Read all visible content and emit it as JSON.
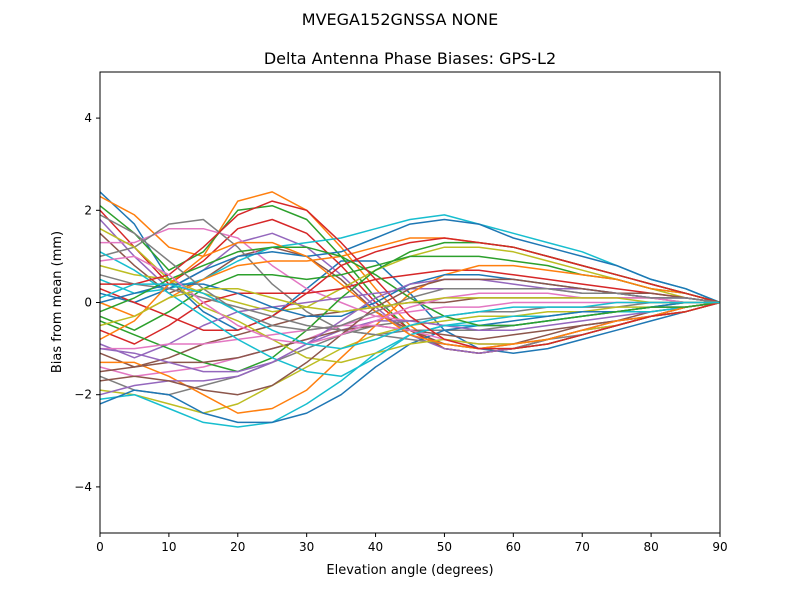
{
  "suptitle": "MVEGA152GNSSA   NONE",
  "chart_data": {
    "type": "line",
    "title": "Delta Antenna Phase Biases: GPS-L2",
    "xlabel": "Elevation angle (degrees)",
    "ylabel": "Bias from mean (mm)",
    "xlim": [
      0,
      90
    ],
    "ylim": [
      -5,
      5
    ],
    "xticks": [
      "0",
      "10",
      "20",
      "30",
      "40",
      "50",
      "60",
      "70",
      "80",
      "90"
    ],
    "yticks": [
      "−4",
      "−2",
      "0",
      "2",
      "4"
    ],
    "grid": false,
    "legend": "none",
    "x": [
      0,
      5,
      10,
      15,
      20,
      25,
      30,
      35,
      40,
      45,
      50,
      55,
      60,
      65,
      70,
      75,
      80,
      85,
      90
    ],
    "series": [
      {
        "values": [
          2.4,
          1.7,
          0.5,
          -0.2,
          -0.6,
          -0.3,
          0.3,
          0.9,
          0.9,
          0.2,
          -0.6,
          -1.0,
          -1.1,
          -1.0,
          -0.8,
          -0.6,
          -0.4,
          -0.2,
          0.0
        ]
      },
      {
        "values": [
          2.3,
          1.9,
          1.2,
          1.0,
          2.2,
          2.4,
          2.0,
          1.2,
          0.3,
          -0.5,
          -1.0,
          -1.1,
          -1.0,
          -0.9,
          -0.7,
          -0.5,
          -0.3,
          -0.2,
          0.0
        ]
      },
      {
        "values": [
          2.1,
          1.5,
          0.7,
          1.1,
          2.0,
          2.1,
          1.8,
          1.0,
          0.1,
          -0.6,
          -1.0,
          -1.1,
          -1.0,
          -0.9,
          -0.7,
          -0.5,
          -0.3,
          -0.2,
          0.0
        ]
      },
      {
        "values": [
          2.0,
          1.2,
          0.4,
          0.9,
          1.6,
          1.8,
          1.5,
          0.8,
          0.0,
          -0.6,
          -1.0,
          -1.1,
          -1.0,
          -0.8,
          -0.6,
          -0.5,
          -0.3,
          -0.1,
          0.0
        ]
      },
      {
        "values": [
          1.8,
          1.0,
          0.3,
          0.7,
          1.3,
          1.5,
          1.2,
          0.6,
          -0.1,
          -0.7,
          -1.0,
          -1.1,
          -1.0,
          -0.8,
          -0.6,
          -0.4,
          -0.3,
          -0.1,
          0.0
        ]
      },
      {
        "values": [
          1.5,
          0.8,
          0.2,
          0.5,
          1.0,
          1.2,
          1.0,
          0.5,
          -0.2,
          -0.6,
          -0.9,
          -1.0,
          -0.9,
          -0.7,
          -0.5,
          -0.4,
          -0.2,
          -0.1,
          0.0
        ]
      },
      {
        "values": [
          1.3,
          1.3,
          1.6,
          1.6,
          1.4,
          0.8,
          0.3,
          0.0,
          -0.3,
          -0.4,
          -0.5,
          -0.5,
          -0.5,
          -0.4,
          -0.3,
          -0.2,
          -0.1,
          -0.1,
          0.0
        ]
      },
      {
        "values": [
          1.0,
          1.2,
          1.7,
          1.8,
          1.2,
          0.4,
          -0.2,
          -0.6,
          -0.7,
          -0.6,
          -0.6,
          -0.6,
          -0.5,
          -0.4,
          -0.3,
          -0.2,
          -0.1,
          -0.1,
          0.0
        ]
      },
      {
        "values": [
          0.8,
          0.6,
          0.5,
          0.2,
          0.0,
          -0.2,
          -0.1,
          0.3,
          0.7,
          1.0,
          1.2,
          1.2,
          1.1,
          0.9,
          0.7,
          0.5,
          0.3,
          0.1,
          0.0
        ]
      },
      {
        "values": [
          0.5,
          0.2,
          0.3,
          0.5,
          0.9,
          1.2,
          1.3,
          1.4,
          1.6,
          1.8,
          1.9,
          1.7,
          1.5,
          1.3,
          1.1,
          0.8,
          0.5,
          0.3,
          0.0
        ]
      },
      {
        "values": [
          0.2,
          0.0,
          0.3,
          0.7,
          1.0,
          1.1,
          1.0,
          1.1,
          1.4,
          1.7,
          1.8,
          1.7,
          1.4,
          1.2,
          1.0,
          0.8,
          0.5,
          0.3,
          0.0
        ]
      },
      {
        "values": [
          0.0,
          -0.3,
          0.1,
          0.5,
          0.8,
          0.9,
          0.9,
          1.0,
          1.2,
          1.4,
          1.4,
          1.3,
          1.2,
          1.0,
          0.8,
          0.6,
          0.4,
          0.2,
          0.0
        ]
      },
      {
        "values": [
          -0.3,
          -0.6,
          -0.2,
          0.3,
          0.6,
          0.6,
          0.5,
          0.6,
          0.8,
          1.0,
          1.0,
          1.0,
          0.9,
          0.8,
          0.6,
          0.5,
          0.3,
          0.2,
          0.0
        ]
      },
      {
        "values": [
          -0.6,
          -0.9,
          -0.5,
          0.0,
          0.2,
          0.2,
          0.2,
          0.3,
          0.5,
          0.6,
          0.7,
          0.7,
          0.6,
          0.5,
          0.4,
          0.3,
          0.2,
          0.1,
          0.0
        ]
      },
      {
        "values": [
          -0.9,
          -1.2,
          -0.9,
          -0.5,
          -0.2,
          -0.1,
          0.0,
          0.1,
          0.2,
          0.3,
          0.3,
          0.3,
          0.3,
          0.3,
          0.2,
          0.2,
          0.1,
          0.1,
          0.0
        ]
      },
      {
        "values": [
          -1.1,
          -1.4,
          -1.2,
          -0.9,
          -0.7,
          -0.5,
          -0.3,
          -0.2,
          -0.1,
          0.0,
          0.0,
          0.1,
          0.1,
          0.1,
          0.1,
          0.1,
          0.1,
          0.0,
          0.0
        ]
      },
      {
        "values": [
          -1.4,
          -1.6,
          -1.5,
          -1.4,
          -1.2,
          -1.0,
          -0.8,
          -0.5,
          -0.3,
          -0.2,
          -0.1,
          -0.1,
          0.0,
          0.0,
          0.0,
          0.0,
          0.0,
          0.0,
          0.0
        ]
      },
      {
        "values": [
          -1.6,
          -1.9,
          -2.0,
          -1.8,
          -1.6,
          -1.3,
          -1.0,
          -0.7,
          -0.5,
          -0.4,
          -0.3,
          -0.2,
          -0.2,
          -0.1,
          -0.1,
          -0.1,
          0.0,
          0.0,
          0.0
        ]
      },
      {
        "values": [
          -1.9,
          -2.0,
          -2.2,
          -2.4,
          -2.2,
          -1.8,
          -1.4,
          -1.0,
          -0.7,
          -0.5,
          -0.4,
          -0.3,
          -0.3,
          -0.2,
          -0.2,
          -0.1,
          -0.1,
          0.0,
          0.0
        ]
      },
      {
        "values": [
          -2.1,
          -2.0,
          -2.3,
          -2.6,
          -2.7,
          -2.6,
          -2.2,
          -1.7,
          -1.1,
          -0.7,
          -0.5,
          -0.4,
          -0.3,
          -0.3,
          -0.2,
          -0.2,
          -0.1,
          0.0,
          0.0
        ]
      },
      {
        "values": [
          -2.2,
          -1.9,
          -2.0,
          -2.4,
          -2.6,
          -2.6,
          -2.4,
          -2.0,
          -1.4,
          -0.9,
          -0.6,
          -0.5,
          -0.4,
          -0.3,
          -0.2,
          -0.2,
          -0.1,
          0.0,
          0.0
        ]
      },
      {
        "values": [
          -1.3,
          -1.3,
          -1.6,
          -2.0,
          -2.4,
          -2.3,
          -1.9,
          -1.2,
          -0.5,
          0.2,
          0.6,
          0.8,
          0.8,
          0.7,
          0.6,
          0.5,
          0.3,
          0.2,
          0.0
        ]
      },
      {
        "values": [
          -0.4,
          -0.7,
          -1.0,
          -1.3,
          -1.5,
          -1.2,
          -0.6,
          0.1,
          0.7,
          1.1,
          1.3,
          1.3,
          1.2,
          1.0,
          0.8,
          0.6,
          0.4,
          0.2,
          0.0
        ]
      },
      {
        "values": [
          0.3,
          0.0,
          -0.3,
          -0.6,
          -0.6,
          -0.3,
          0.2,
          0.8,
          1.1,
          1.3,
          1.4,
          1.3,
          1.2,
          1.0,
          0.8,
          0.6,
          0.4,
          0.2,
          0.0
        ]
      },
      {
        "values": [
          -2.0,
          -1.8,
          -1.7,
          -1.7,
          -1.6,
          -1.3,
          -0.9,
          -0.6,
          -0.4,
          -0.4,
          -0.5,
          -0.6,
          -0.6,
          -0.5,
          -0.4,
          -0.3,
          -0.2,
          -0.1,
          0.0
        ]
      },
      {
        "values": [
          -1.5,
          -1.4,
          -1.3,
          -1.3,
          -1.2,
          -1.0,
          -0.8,
          -0.6,
          -0.5,
          -0.6,
          -0.7,
          -0.8,
          -0.7,
          -0.6,
          -0.5,
          -0.4,
          -0.3,
          -0.1,
          0.0
        ]
      },
      {
        "values": [
          -1.0,
          -1.0,
          -0.9,
          -0.9,
          -0.8,
          -0.7,
          -0.6,
          -0.5,
          -0.5,
          -0.6,
          -0.8,
          -0.9,
          -0.9,
          -0.8,
          -0.6,
          -0.5,
          -0.3,
          -0.2,
          0.0
        ]
      },
      {
        "values": [
          0.6,
          0.4,
          0.3,
          0.1,
          -0.1,
          -0.3,
          -0.5,
          -0.6,
          -0.7,
          -0.8,
          -0.9,
          -1.0,
          -1.0,
          -0.8,
          -0.7,
          -0.5,
          -0.3,
          -0.2,
          0.0
        ]
      },
      {
        "values": [
          1.6,
          1.2,
          0.5,
          -0.1,
          -0.4,
          -0.8,
          -1.2,
          -1.3,
          -1.1,
          -0.9,
          -0.8,
          -0.9,
          -0.9,
          -0.8,
          -0.6,
          -0.5,
          -0.3,
          -0.2,
          0.0
        ]
      },
      {
        "values": [
          1.1,
          0.7,
          0.2,
          -0.3,
          -0.8,
          -1.2,
          -1.5,
          -1.6,
          -1.2,
          -0.7,
          -0.5,
          -0.5,
          -0.5,
          -0.4,
          -0.3,
          -0.2,
          -0.2,
          -0.1,
          0.0
        ]
      },
      {
        "values": [
          0.0,
          0.2,
          0.4,
          0.4,
          0.2,
          -0.1,
          -0.3,
          -0.3,
          0.0,
          0.4,
          0.6,
          0.6,
          0.5,
          0.4,
          0.3,
          0.2,
          0.1,
          0.1,
          0.0
        ]
      },
      {
        "values": [
          -0.8,
          -0.4,
          0.4,
          1.0,
          1.3,
          1.3,
          1.0,
          0.4,
          -0.2,
          -0.7,
          -0.9,
          -1.0,
          -0.9,
          -0.8,
          -0.6,
          -0.4,
          -0.3,
          -0.1,
          0.0
        ]
      },
      {
        "values": [
          -0.2,
          0.1,
          0.5,
          0.8,
          1.1,
          1.2,
          1.2,
          1.0,
          0.6,
          0.1,
          -0.3,
          -0.5,
          -0.5,
          -0.4,
          -0.3,
          -0.2,
          -0.1,
          -0.1,
          0.0
        ]
      },
      {
        "values": [
          0.4,
          0.4,
          0.6,
          1.2,
          1.9,
          2.2,
          2.0,
          1.3,
          0.5,
          -0.3,
          -0.8,
          -1.0,
          -1.0,
          -0.9,
          -0.7,
          -0.5,
          -0.3,
          -0.2,
          0.0
        ]
      },
      {
        "values": [
          -1.0,
          -1.1,
          -1.3,
          -1.5,
          -1.5,
          -1.3,
          -0.9,
          -0.4,
          0.1,
          0.4,
          0.5,
          0.5,
          0.4,
          0.3,
          0.3,
          0.2,
          0.1,
          0.1,
          0.0
        ]
      },
      {
        "values": [
          -1.7,
          -1.6,
          -1.7,
          -1.9,
          -2.0,
          -1.8,
          -1.3,
          -0.7,
          -0.1,
          0.3,
          0.5,
          0.5,
          0.5,
          0.4,
          0.3,
          0.2,
          0.2,
          0.1,
          0.0
        ]
      },
      {
        "values": [
          0.9,
          1.0,
          0.6,
          0.0,
          -0.5,
          -0.8,
          -0.9,
          -0.7,
          -0.4,
          -0.1,
          0.1,
          0.2,
          0.2,
          0.2,
          0.1,
          0.1,
          0.1,
          0.0,
          0.0
        ]
      },
      {
        "values": [
          1.9,
          1.5,
          0.9,
          0.3,
          -0.2,
          -0.5,
          -0.6,
          -0.5,
          -0.2,
          0.1,
          0.3,
          0.3,
          0.3,
          0.3,
          0.2,
          0.2,
          0.1,
          0.1,
          0.0
        ]
      },
      {
        "values": [
          -0.5,
          -0.3,
          0.1,
          0.3,
          0.3,
          0.1,
          -0.1,
          -0.2,
          -0.1,
          0.0,
          0.1,
          0.1,
          0.1,
          0.1,
          0.1,
          0.1,
          0.0,
          0.0,
          0.0
        ]
      },
      {
        "values": [
          0.1,
          0.4,
          0.4,
          0.2,
          -0.2,
          -0.6,
          -0.9,
          -1.0,
          -0.8,
          -0.5,
          -0.3,
          -0.2,
          -0.1,
          -0.1,
          -0.1,
          0.0,
          0.0,
          0.0,
          0.0
        ]
      }
    ]
  }
}
